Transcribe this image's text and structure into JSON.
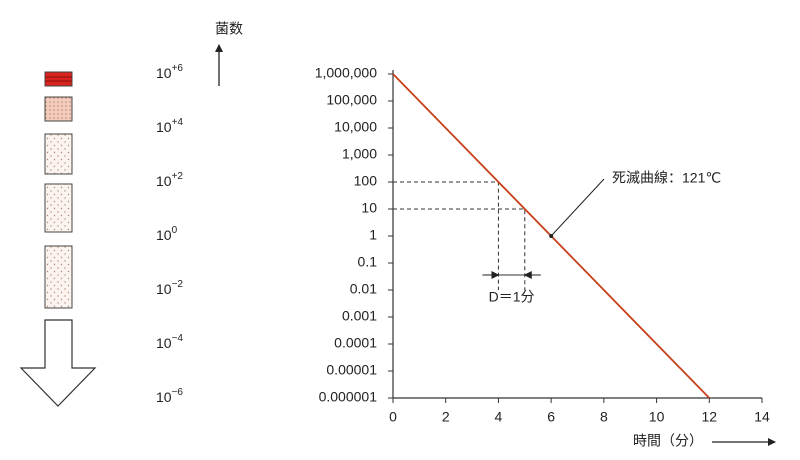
{
  "chart_data": {
    "type": "line",
    "log_y": true,
    "color": "#c8401a",
    "x": [
      0,
      12
    ],
    "values": [
      1000000,
      1e-06
    ],
    "xlim": [
      0,
      14
    ],
    "xticks": [
      0,
      2,
      4,
      6,
      8,
      10,
      12,
      14
    ],
    "ylim": [
      1e-06,
      1000000
    ],
    "yticks": [
      {
        "value": 1000000,
        "label": "1,000,000"
      },
      {
        "value": 100000,
        "label": "100,000"
      },
      {
        "value": 10000,
        "label": "10,000"
      },
      {
        "value": 1000,
        "label": "1,000"
      },
      100,
      10,
      1,
      0.1,
      0.01,
      0.001,
      0.0001,
      1e-05,
      1e-06
    ],
    "y_label": "菌数",
    "x_label": "時間（分）",
    "annotation": {
      "text": "死滅曲線：121℃",
      "x": 6,
      "y": 1
    },
    "reference_points": [
      {
        "x": 4,
        "y": 100
      },
      {
        "x": 5,
        "y": 10
      }
    ],
    "d_label": "D＝1分",
    "side_labels": [
      {
        "base": "10",
        "exponent": "+6"
      },
      {
        "base": "10",
        "exponent": "+4"
      },
      {
        "base": "10",
        "exponent": "+2"
      },
      {
        "base": "10",
        "exponent": "0"
      },
      {
        "base": "10",
        "exponent": "−2"
      },
      {
        "base": "10",
        "exponent": "−4"
      },
      {
        "base": "10",
        "exponent": "−6"
      }
    ]
  }
}
